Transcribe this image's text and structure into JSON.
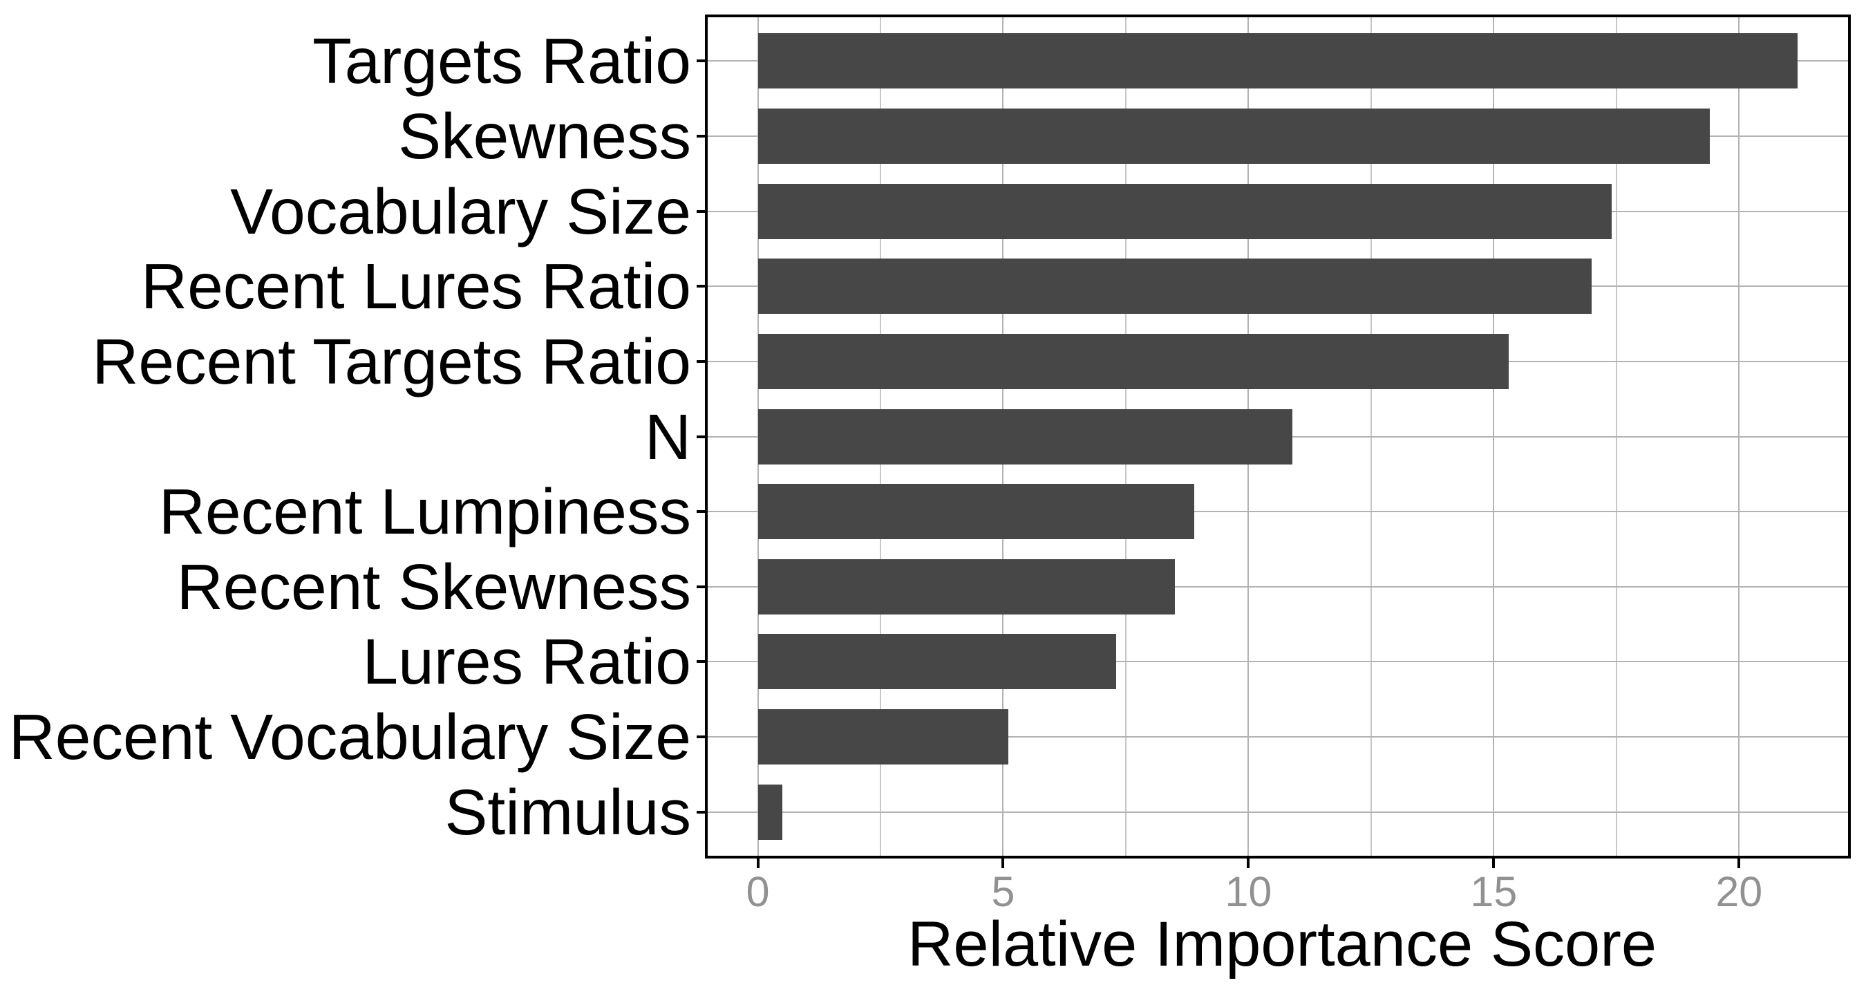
{
  "chart_data": {
    "type": "bar",
    "orientation": "horizontal",
    "title": "",
    "xlabel": "Relative Importance Score",
    "ylabel": "",
    "categories": [
      "Targets Ratio",
      "Skewness",
      "Vocabulary Size",
      "Recent Lures Ratio",
      "Recent Targets Ratio",
      "N",
      "Recent Lumpiness",
      "Recent Skewness",
      "Lures Ratio",
      "Recent Vocabulary Size",
      "Stimulus"
    ],
    "values": [
      21.2,
      19.4,
      17.4,
      17.0,
      15.3,
      10.9,
      8.9,
      8.5,
      7.3,
      5.1,
      0.5
    ],
    "xlim": [
      -1.05,
      22.25
    ],
    "x_ticks_major": [
      0,
      5,
      10,
      15,
      20
    ],
    "x_ticks_minor": [
      2.5,
      7.5,
      12.5,
      17.5
    ],
    "grid": "vertical major+minor; horizontal major at category centers",
    "legend": "none",
    "colors": {
      "bar": "#474747",
      "panel_background": "#ffffff",
      "panel_border": "#000000",
      "grid_major": "#b3b3b3",
      "grid_minor": "#c7c7c7",
      "axis_ticks": "#000000",
      "x_tick_text": "#919191",
      "y_label_text": "#000000",
      "axis_title_text": "#000000"
    }
  }
}
